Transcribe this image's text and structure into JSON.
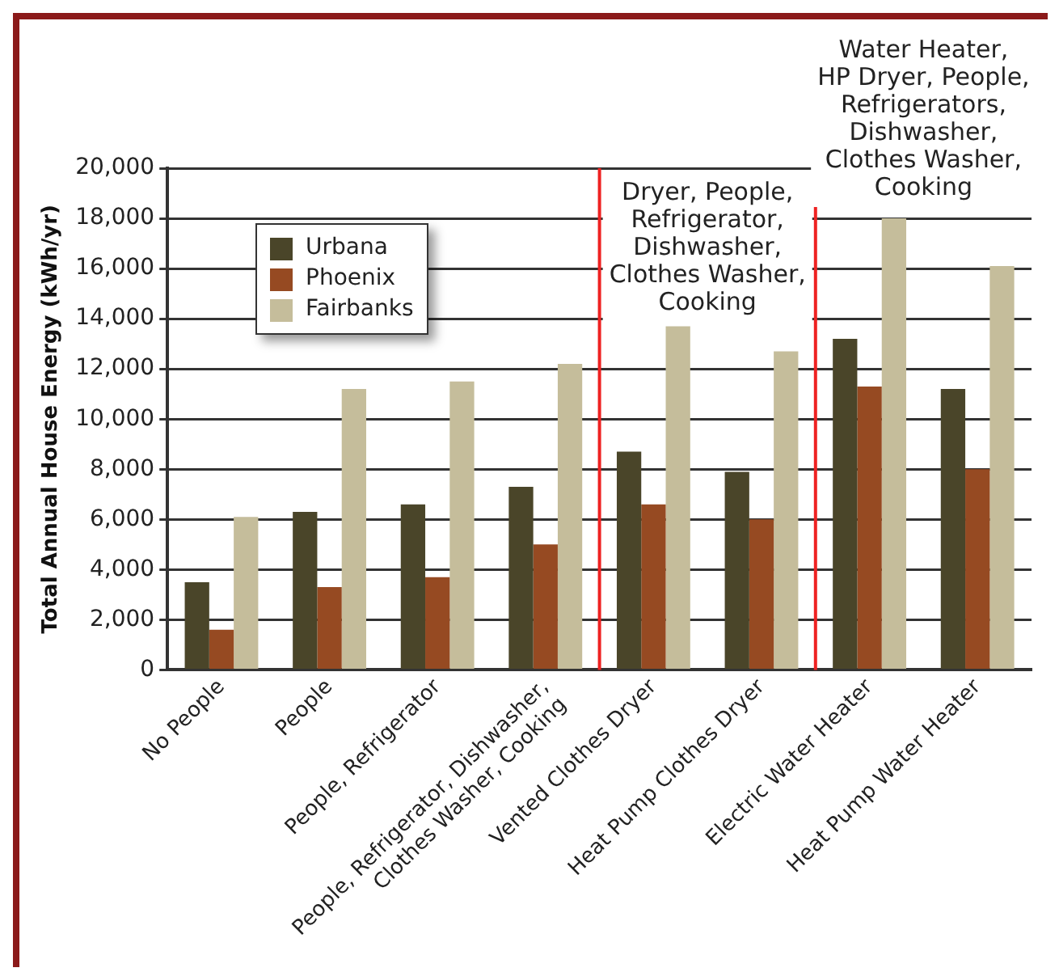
{
  "chart_data": {
    "type": "bar",
    "ylabel": "Total Annual House Energy (kWh/yr)",
    "categories": [
      "No People",
      "People",
      "People, Refrigerator",
      "People, Refrigerator, Dishwasher, Clothes Washer, Cooking",
      "Vented Clothes Dryer",
      "Heat Pump Clothes Dryer",
      "Electric Water Heater",
      "Heat Pump Water Heater"
    ],
    "series": [
      {
        "name": "Urbana",
        "color": "#4a4529",
        "values": [
          3500,
          6300,
          6600,
          7300,
          8700,
          7900,
          13200,
          11200
        ]
      },
      {
        "name": "Phoenix",
        "color": "#964a22",
        "values": [
          1600,
          3300,
          3700,
          5000,
          6600,
          6000,
          11300,
          8000
        ]
      },
      {
        "name": "Fairbanks",
        "color": "#c5bd9b",
        "values": [
          6100,
          11200,
          11500,
          12200,
          13700,
          12700,
          18000,
          16100
        ]
      }
    ],
    "ylim": [
      0,
      20000
    ],
    "yticks": [
      0,
      {
        "value": 2000,
        "label": "2,000"
      },
      {
        "value": 4000,
        "label": "4,000"
      },
      {
        "value": 6000,
        "label": "6,000"
      },
      {
        "value": 8000,
        "label": "8,000"
      },
      {
        "value": 10000,
        "label": "10,000"
      },
      {
        "value": 12000,
        "label": "12,000"
      },
      {
        "value": 14000,
        "label": "14,000"
      },
      {
        "value": 16000,
        "label": "16,000"
      },
      {
        "value": 18000,
        "label": "18,000"
      },
      {
        "value": 20000,
        "label": "20,000"
      }
    ],
    "grid": "y",
    "legend": "top left",
    "annotations": [
      "Dryer, People,\nRefrigerator,\nDishwasher,\nClothes Washer,\nCooking",
      "Water Heater,\nHP Dryer, People,\nRefrigerators,\nDishwasher,\nClothes Washer,\nCooking"
    ]
  }
}
